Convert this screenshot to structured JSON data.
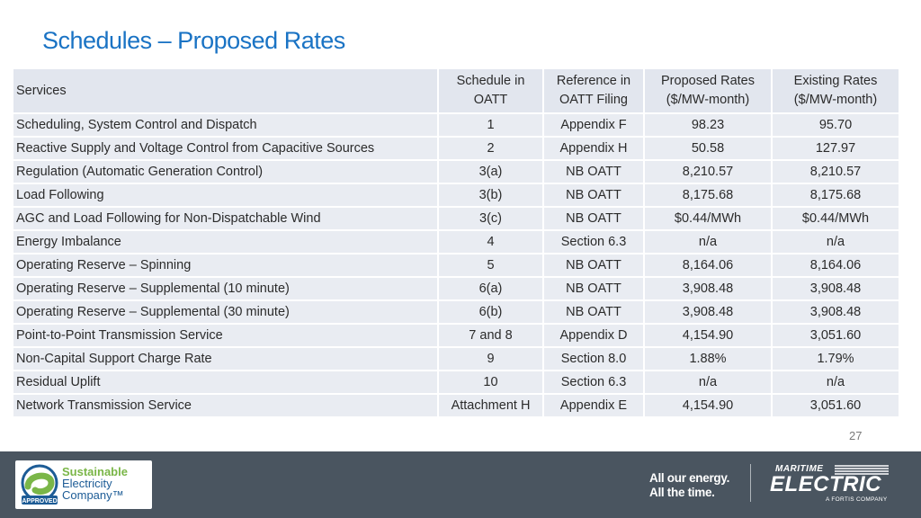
{
  "slide": {
    "title": "Schedules – Proposed Rates",
    "page_number": "27"
  },
  "table": {
    "headers": {
      "services": "Services",
      "schedule_l1": "Schedule in",
      "schedule_l2": "OATT",
      "reference_l1": "Reference in",
      "reference_l2": "OATT Filing",
      "proposed_l1": "Proposed Rates",
      "proposed_l2": "($/MW-month)",
      "existing_l1": "Existing Rates",
      "existing_l2": "($/MW-month)"
    },
    "rows": [
      {
        "service": "Scheduling, System Control and Dispatch",
        "schedule": "1",
        "reference": "Appendix F",
        "proposed": "98.23",
        "existing": "95.70"
      },
      {
        "service": "Reactive Supply and Voltage Control from Capacitive Sources",
        "schedule": "2",
        "reference": "Appendix H",
        "proposed": "50.58",
        "existing": "127.97"
      },
      {
        "service": "Regulation (Automatic Generation Control)",
        "schedule": "3(a)",
        "reference": "NB OATT",
        "proposed": "8,210.57",
        "existing": "8,210.57"
      },
      {
        "service": "Load Following",
        "schedule": "3(b)",
        "reference": "NB OATT",
        "proposed": "8,175.68",
        "existing": "8,175.68"
      },
      {
        "service": "AGC and Load Following for Non-Dispatchable Wind",
        "schedule": "3(c)",
        "reference": "NB OATT",
        "proposed": "$0.44/MWh",
        "existing": "$0.44/MWh"
      },
      {
        "service": "Energy Imbalance",
        "schedule": "4",
        "reference": "Section 6.3",
        "proposed": "n/a",
        "existing": "n/a"
      },
      {
        "service": "Operating Reserve – Spinning",
        "schedule": "5",
        "reference": "NB OATT",
        "proposed": "8,164.06",
        "existing": "8,164.06"
      },
      {
        "service": "Operating Reserve – Supplemental (10 minute)",
        "schedule": "6(a)",
        "reference": "NB OATT",
        "proposed": "3,908.48",
        "existing": "3,908.48"
      },
      {
        "service": "Operating Reserve – Supplemental (30 minute)",
        "schedule": "6(b)",
        "reference": "NB OATT",
        "proposed": "3,908.48",
        "existing": "3,908.48"
      },
      {
        "service": "Point-to-Point Transmission Service",
        "schedule": "7 and 8",
        "reference": "Appendix D",
        "proposed": "4,154.90",
        "existing": "3,051.60"
      },
      {
        "service": "Non-Capital Support Charge Rate",
        "schedule": "9",
        "reference": "Section 8.0",
        "proposed": "1.88%",
        "existing": "1.79%"
      },
      {
        "service": "Residual Uplift",
        "schedule": "10",
        "reference": "Section 6.3",
        "proposed": "n/a",
        "existing": "n/a"
      },
      {
        "service": "Network Transmission Service",
        "schedule": "Attachment H",
        "reference": "Appendix E",
        "proposed": "4,154.90",
        "existing": "3,051.60"
      }
    ]
  },
  "footer": {
    "sustainable_logo": {
      "line1": "Sustainable",
      "line2": "Electricity",
      "line3": "Company™",
      "badge": "APPROVED"
    },
    "tagline_l1": "All our energy.",
    "tagline_l2": "All the time.",
    "maritime_logo": {
      "top": "MARITIME",
      "main": "ELECTRIC",
      "sub": "A FORTIS COMPANY"
    }
  },
  "colors": {
    "title": "#1a73c4",
    "table_cell": "#e9ecf2",
    "footer_bg": "#4a5560"
  }
}
